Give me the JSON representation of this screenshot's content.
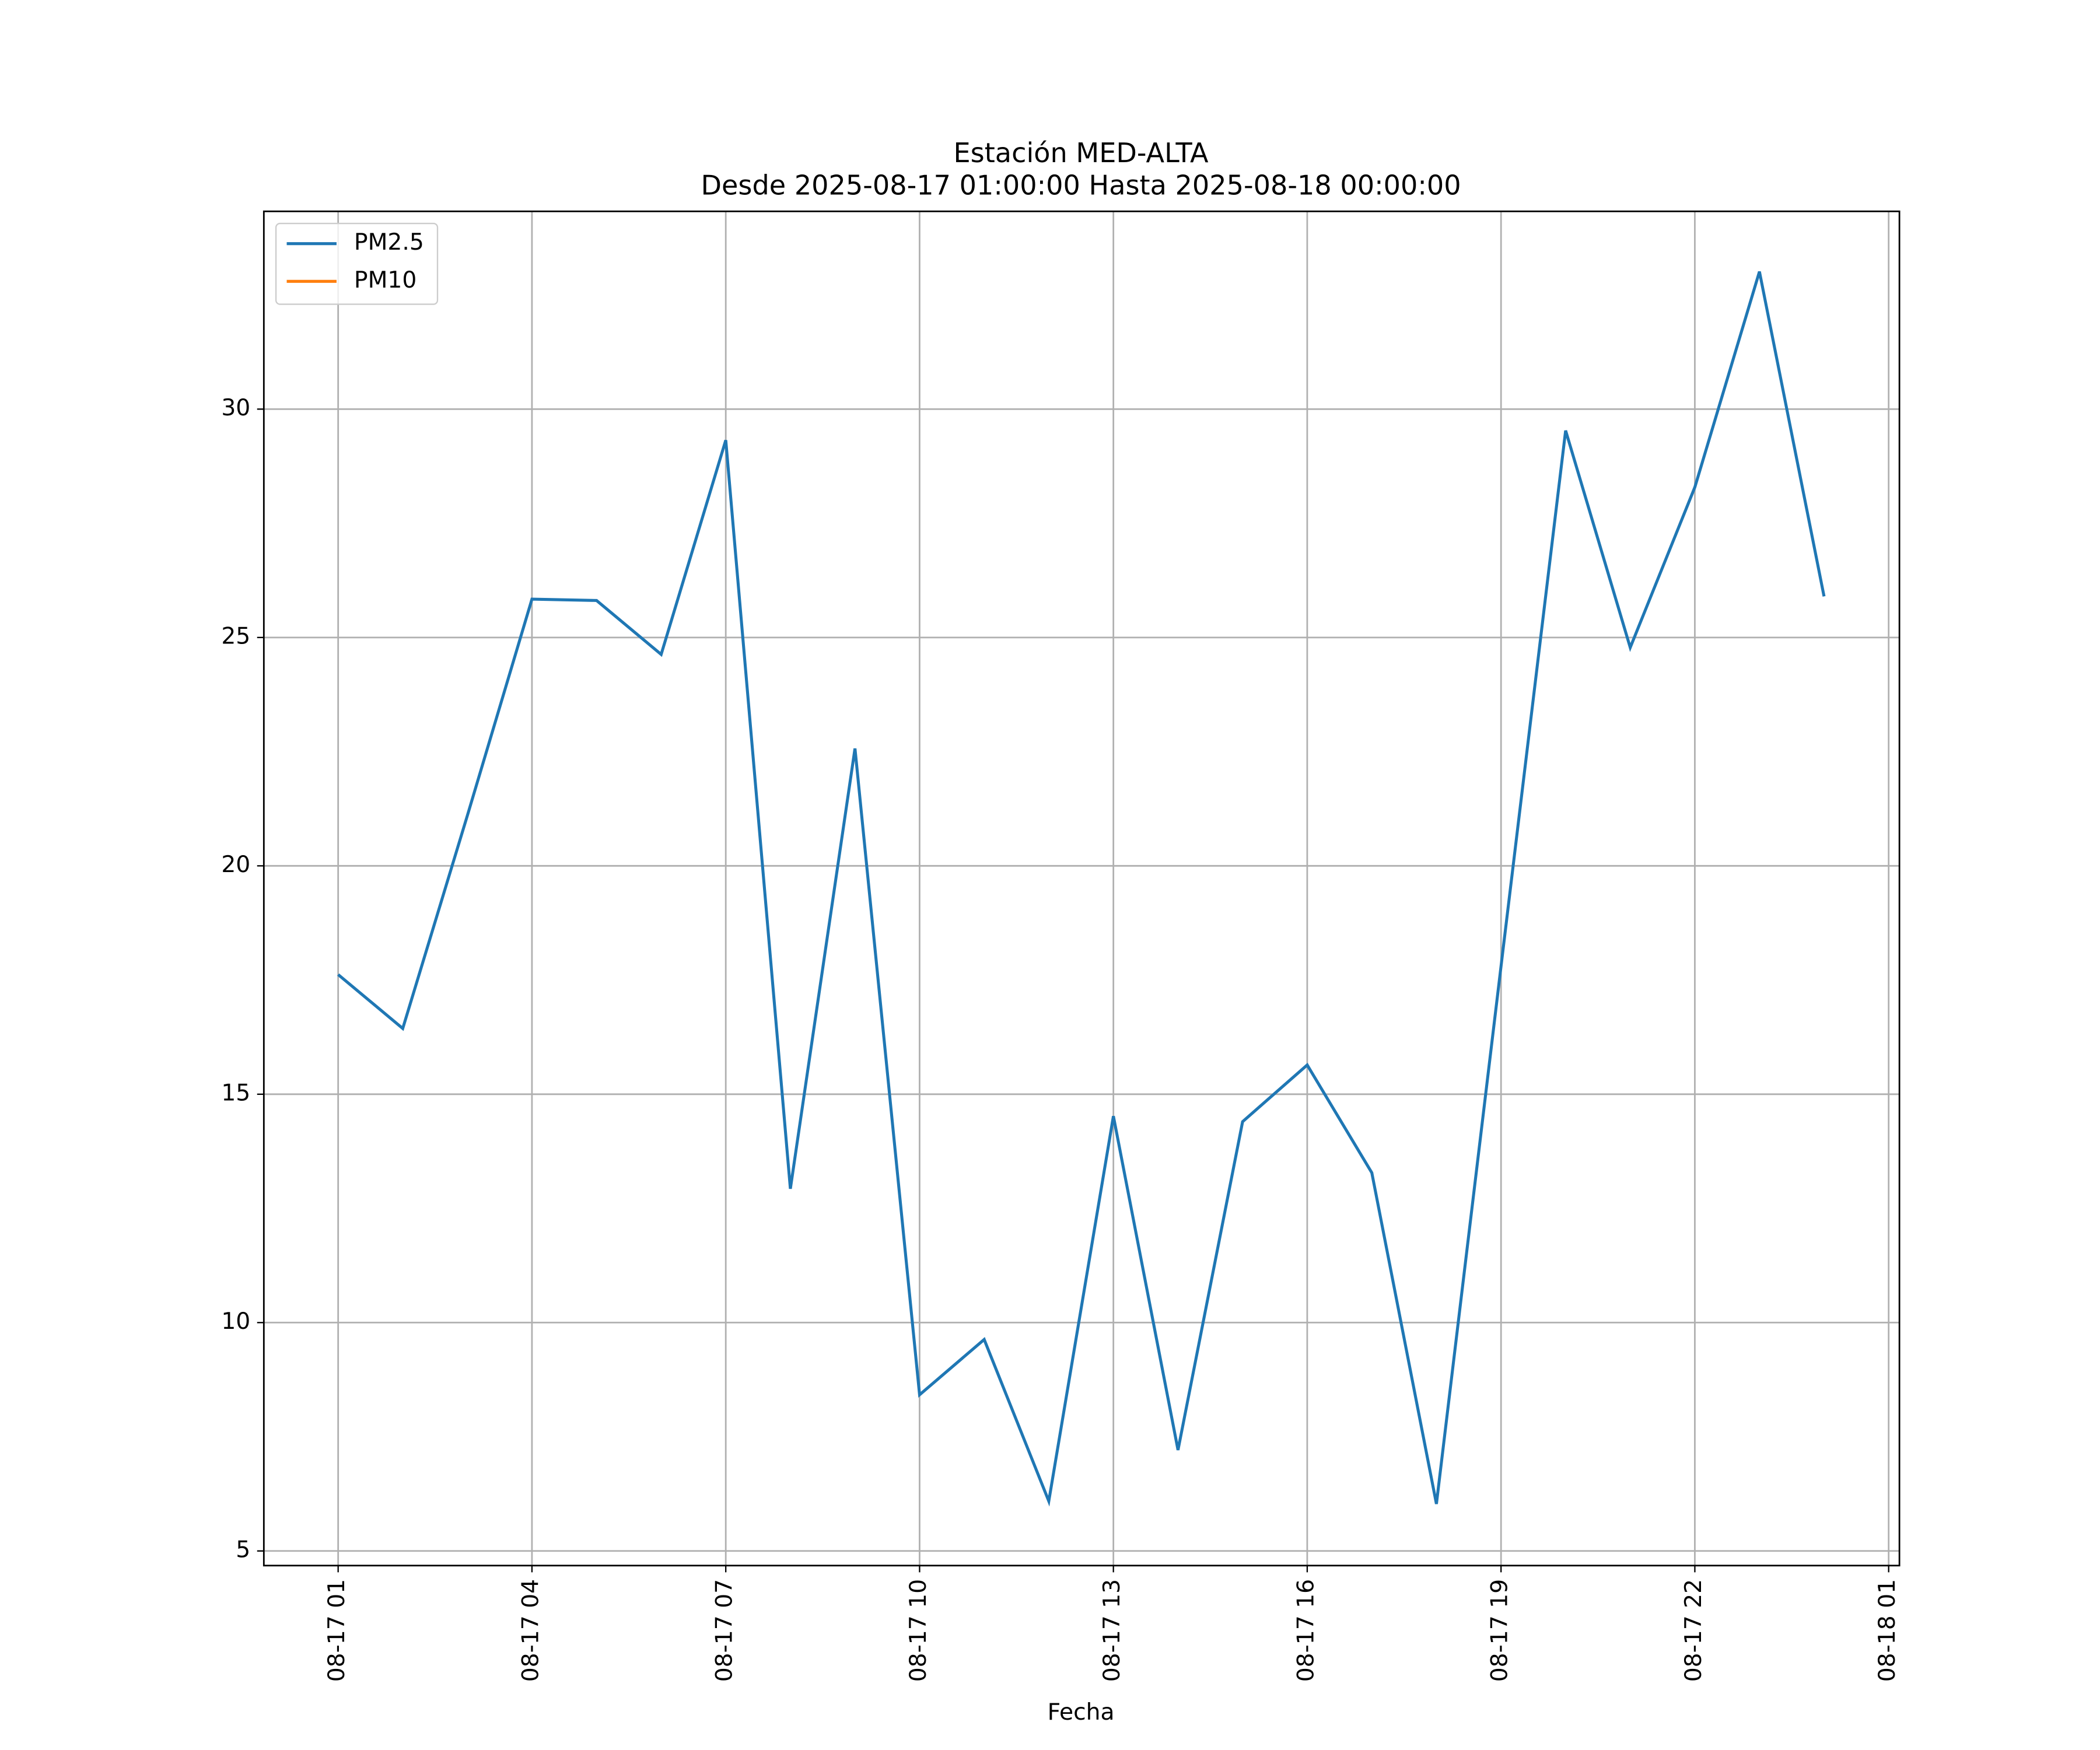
{
  "chart_data": {
    "type": "line",
    "title": "Estación MED-ALTA",
    "subtitle": "Desde 2025-08-17 01:00:00 Hasta 2025-08-18 00:00:00",
    "xlabel": "Fecha",
    "x": [
      "08-17 01",
      "08-17 02",
      "08-17 03",
      "08-17 04",
      "08-17 05",
      "08-17 06",
      "08-17 07",
      "08-17 08",
      "08-17 09",
      "08-17 10",
      "08-17 11",
      "08-17 12",
      "08-17 13",
      "08-17 14",
      "08-17 15",
      "08-17 16",
      "08-17 17",
      "08-17 18",
      "08-17 19",
      "08-17 20",
      "08-17 21",
      "08-17 22",
      "08-17 23",
      "08-18 00"
    ],
    "series": [
      {
        "name": "PM2.5",
        "color": "#1f77b4",
        "values": [
          17.62,
          16.44,
          21.1,
          25.84,
          25.81,
          24.63,
          29.32,
          12.93,
          22.57,
          8.42,
          9.63,
          6.09,
          14.52,
          7.21,
          14.4,
          15.64,
          13.28,
          6.03,
          17.8,
          29.53,
          24.78,
          28.29,
          33.01,
          25.9
        ]
      },
      {
        "name": "PM10",
        "color": "#ff7f0e",
        "values": [
          null,
          null,
          null,
          null,
          null,
          null,
          null,
          null,
          null,
          null,
          null,
          null,
          null,
          null,
          null,
          null,
          null,
          null,
          null,
          null,
          null,
          null,
          null,
          null
        ]
      }
    ],
    "xlim": [
      "08-16 23:51",
      "08-18 01:10"
    ],
    "xticks": [
      "08-17 01",
      "08-17 04",
      "08-17 07",
      "08-17 10",
      "08-17 13",
      "08-17 16",
      "08-17 19",
      "08-17 22",
      "08-18 01"
    ],
    "ylim": [
      4.68,
      34.33
    ],
    "yticks": [
      5,
      10,
      15,
      20,
      25,
      30
    ],
    "grid": true,
    "legend": "upper left"
  }
}
